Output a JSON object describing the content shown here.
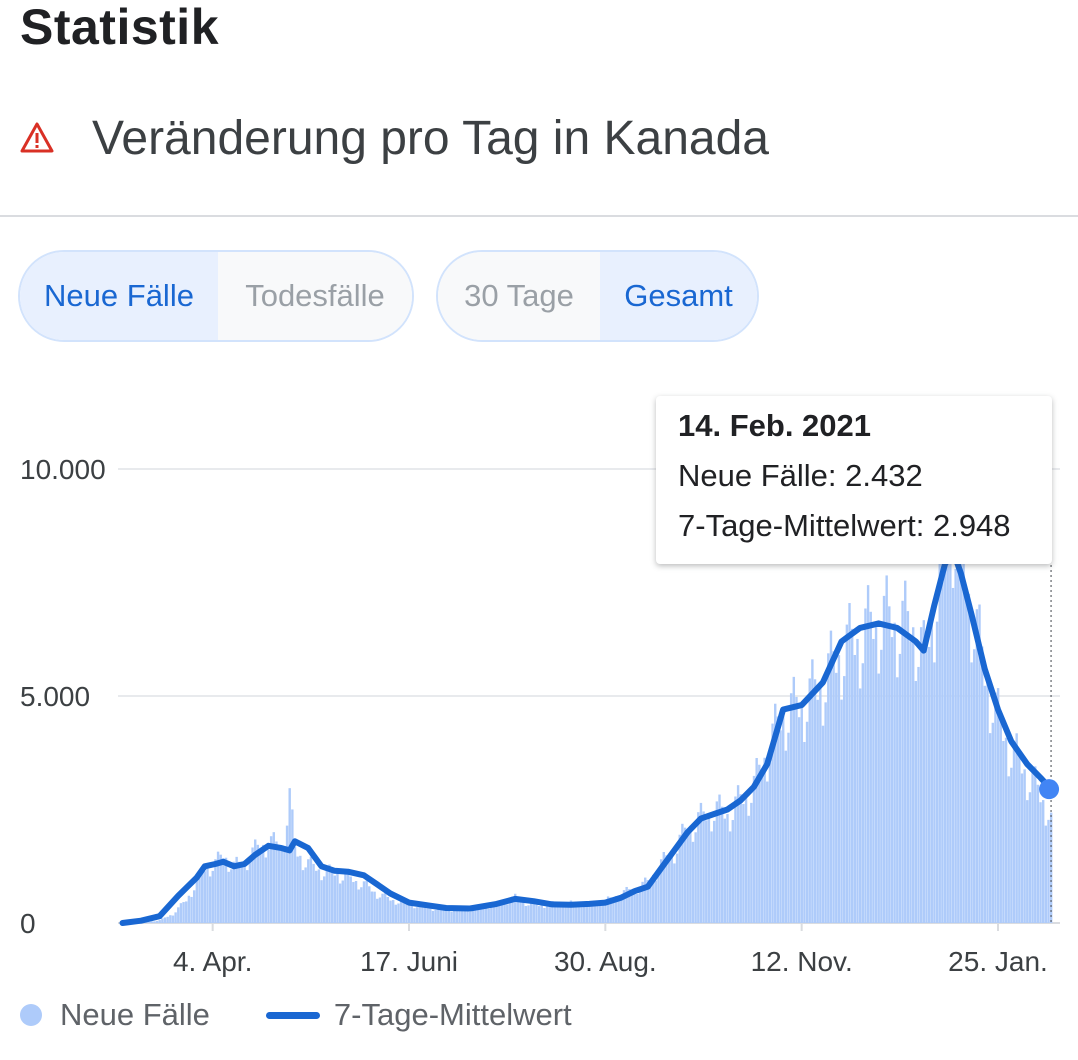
{
  "page": {
    "heading": "Statistik"
  },
  "chart_header": {
    "title": "Veränderung pro Tag in Kanada",
    "icon": "warning-icon",
    "icon_color": "#d93025"
  },
  "metric_toggle": {
    "options": [
      "Neue Fälle",
      "Todesfälle"
    ],
    "selected": "Neue Fälle"
  },
  "range_toggle": {
    "options": [
      "30 Tage",
      "Gesamt"
    ],
    "selected": "Gesamt"
  },
  "tooltip": {
    "date": "14. Feb. 2021",
    "new_cases_text": "Neue Fälle: 2.432",
    "avg_text": "7-Tage-Mittelwert: 2.948"
  },
  "legend": {
    "bars_label": "Neue Fälle",
    "line_label": "7-Tage-Mittelwert"
  },
  "colors": {
    "bars": "#aecbfa",
    "line": "#1967d2",
    "accent": "#1967d2",
    "grid": "#e8eaed"
  },
  "chart_data": {
    "type": "bar",
    "title": "Veränderung pro Tag in Kanada",
    "xlabel": "",
    "ylabel": "",
    "ylim": [
      0,
      10000
    ],
    "yticks": [
      0,
      5000,
      10000
    ],
    "ytick_labels": [
      "0",
      "5.000",
      "10.000"
    ],
    "xtick_labels": [
      "4. Apr.",
      "17. Juni",
      "30. Aug.",
      "12. Nov.",
      "25. Jan."
    ],
    "x_start": "2020-03-01",
    "x_end": "2021-02-14",
    "series": [
      {
        "name": "Neue Fälle",
        "kind": "bar",
        "points": [
          [
            "2020-03-01",
            0
          ],
          [
            "2020-03-10",
            20
          ],
          [
            "2020-03-15",
            60
          ],
          [
            "2020-03-20",
            200
          ],
          [
            "2020-03-25",
            500
          ],
          [
            "2020-04-01",
            1200
          ],
          [
            "2020-04-05",
            1300
          ],
          [
            "2020-04-08",
            1500
          ],
          [
            "2020-04-12",
            1250
          ],
          [
            "2020-04-15",
            1300
          ],
          [
            "2020-04-20",
            1600
          ],
          [
            "2020-04-25",
            1800
          ],
          [
            "2020-04-30",
            1650
          ],
          [
            "2020-05-03",
            2750
          ],
          [
            "2020-05-05",
            1600
          ],
          [
            "2020-05-10",
            1300
          ],
          [
            "2020-05-15",
            1150
          ],
          [
            "2020-05-20",
            1100
          ],
          [
            "2020-05-25",
            1000
          ],
          [
            "2020-05-31",
            850
          ],
          [
            "2020-06-05",
            650
          ],
          [
            "2020-06-10",
            520
          ],
          [
            "2020-06-17",
            420
          ],
          [
            "2020-06-25",
            330
          ],
          [
            "2020-07-01",
            300
          ],
          [
            "2020-07-10",
            300
          ],
          [
            "2020-07-20",
            420
          ],
          [
            "2020-07-27",
            560
          ],
          [
            "2020-08-03",
            380
          ],
          [
            "2020-08-10",
            420
          ],
          [
            "2020-08-17",
            430
          ],
          [
            "2020-08-24",
            420
          ],
          [
            "2020-08-30",
            480
          ],
          [
            "2020-09-05",
            650
          ],
          [
            "2020-09-10",
            750
          ],
          [
            "2020-09-15",
            900
          ],
          [
            "2020-09-20",
            1300
          ],
          [
            "2020-09-25",
            1600
          ],
          [
            "2020-09-30",
            2100
          ],
          [
            "2020-10-05",
            2300
          ],
          [
            "2020-10-10",
            2500
          ],
          [
            "2020-10-15",
            2400
          ],
          [
            "2020-10-20",
            2700
          ],
          [
            "2020-10-25",
            3000
          ],
          [
            "2020-10-30",
            3800
          ],
          [
            "2020-11-05",
            4600
          ],
          [
            "2020-11-12",
            4800
          ],
          [
            "2020-11-20",
            5300
          ],
          [
            "2020-11-27",
            6000
          ],
          [
            "2020-12-04",
            6300
          ],
          [
            "2020-12-11",
            6700
          ],
          [
            "2020-12-18",
            6600
          ],
          [
            "2020-12-25",
            6500
          ],
          [
            "2020-12-28",
            5800
          ],
          [
            "2021-01-01",
            7000
          ],
          [
            "2021-01-05",
            8500
          ],
          [
            "2021-01-08",
            9000
          ],
          [
            "2021-01-11",
            8000
          ],
          [
            "2021-01-15",
            7000
          ],
          [
            "2021-01-20",
            5500
          ],
          [
            "2021-01-25",
            4500
          ],
          [
            "2021-01-30",
            3800
          ],
          [
            "2021-02-05",
            3300
          ],
          [
            "2021-02-10",
            2800
          ],
          [
            "2021-02-14",
            2432
          ]
        ]
      },
      {
        "name": "7-Tage-Mittelwert",
        "kind": "line",
        "points": [
          [
            "2020-03-01",
            0
          ],
          [
            "2020-03-08",
            50
          ],
          [
            "2020-03-15",
            150
          ],
          [
            "2020-03-22",
            600
          ],
          [
            "2020-03-29",
            1000
          ],
          [
            "2020-04-01",
            1250
          ],
          [
            "2020-04-05",
            1300
          ],
          [
            "2020-04-08",
            1350
          ],
          [
            "2020-04-12",
            1250
          ],
          [
            "2020-04-16",
            1300
          ],
          [
            "2020-04-20",
            1500
          ],
          [
            "2020-04-25",
            1700
          ],
          [
            "2020-04-30",
            1650
          ],
          [
            "2020-05-03",
            1600
          ],
          [
            "2020-05-05",
            1800
          ],
          [
            "2020-05-10",
            1650
          ],
          [
            "2020-05-15",
            1250
          ],
          [
            "2020-05-20",
            1150
          ],
          [
            "2020-05-25",
            1130
          ],
          [
            "2020-05-31",
            1050
          ],
          [
            "2020-06-05",
            850
          ],
          [
            "2020-06-10",
            650
          ],
          [
            "2020-06-17",
            450
          ],
          [
            "2020-06-25",
            380
          ],
          [
            "2020-07-01",
            330
          ],
          [
            "2020-07-10",
            320
          ],
          [
            "2020-07-20",
            420
          ],
          [
            "2020-07-27",
            530
          ],
          [
            "2020-08-03",
            480
          ],
          [
            "2020-08-10",
            410
          ],
          [
            "2020-08-17",
            400
          ],
          [
            "2020-08-24",
            420
          ],
          [
            "2020-08-30",
            450
          ],
          [
            "2020-09-05",
            560
          ],
          [
            "2020-09-10",
            700
          ],
          [
            "2020-09-15",
            800
          ],
          [
            "2020-09-20",
            1200
          ],
          [
            "2020-09-25",
            1600
          ],
          [
            "2020-09-30",
            2000
          ],
          [
            "2020-10-05",
            2300
          ],
          [
            "2020-10-10",
            2400
          ],
          [
            "2020-10-15",
            2500
          ],
          [
            "2020-10-20",
            2700
          ],
          [
            "2020-10-25",
            3000
          ],
          [
            "2020-10-30",
            3500
          ],
          [
            "2020-11-05",
            4700
          ],
          [
            "2020-11-12",
            4800
          ],
          [
            "2020-11-20",
            5300
          ],
          [
            "2020-11-27",
            6200
          ],
          [
            "2020-12-04",
            6500
          ],
          [
            "2020-12-11",
            6600
          ],
          [
            "2020-12-18",
            6500
          ],
          [
            "2020-12-25",
            6200
          ],
          [
            "2020-12-28",
            6000
          ],
          [
            "2021-01-01",
            7000
          ],
          [
            "2021-01-05",
            7900
          ],
          [
            "2021-01-08",
            8200
          ],
          [
            "2021-01-11",
            7700
          ],
          [
            "2021-01-15",
            6800
          ],
          [
            "2021-01-20",
            5600
          ],
          [
            "2021-01-25",
            4700
          ],
          [
            "2021-01-30",
            4000
          ],
          [
            "2021-02-05",
            3500
          ],
          [
            "2021-02-10",
            3200
          ],
          [
            "2021-02-14",
            2948
          ]
        ]
      }
    ],
    "highlight": {
      "date": "2021-02-14",
      "new_cases": 2432,
      "avg": 2948
    },
    "grid": true,
    "legend_position": "bottom-left"
  }
}
